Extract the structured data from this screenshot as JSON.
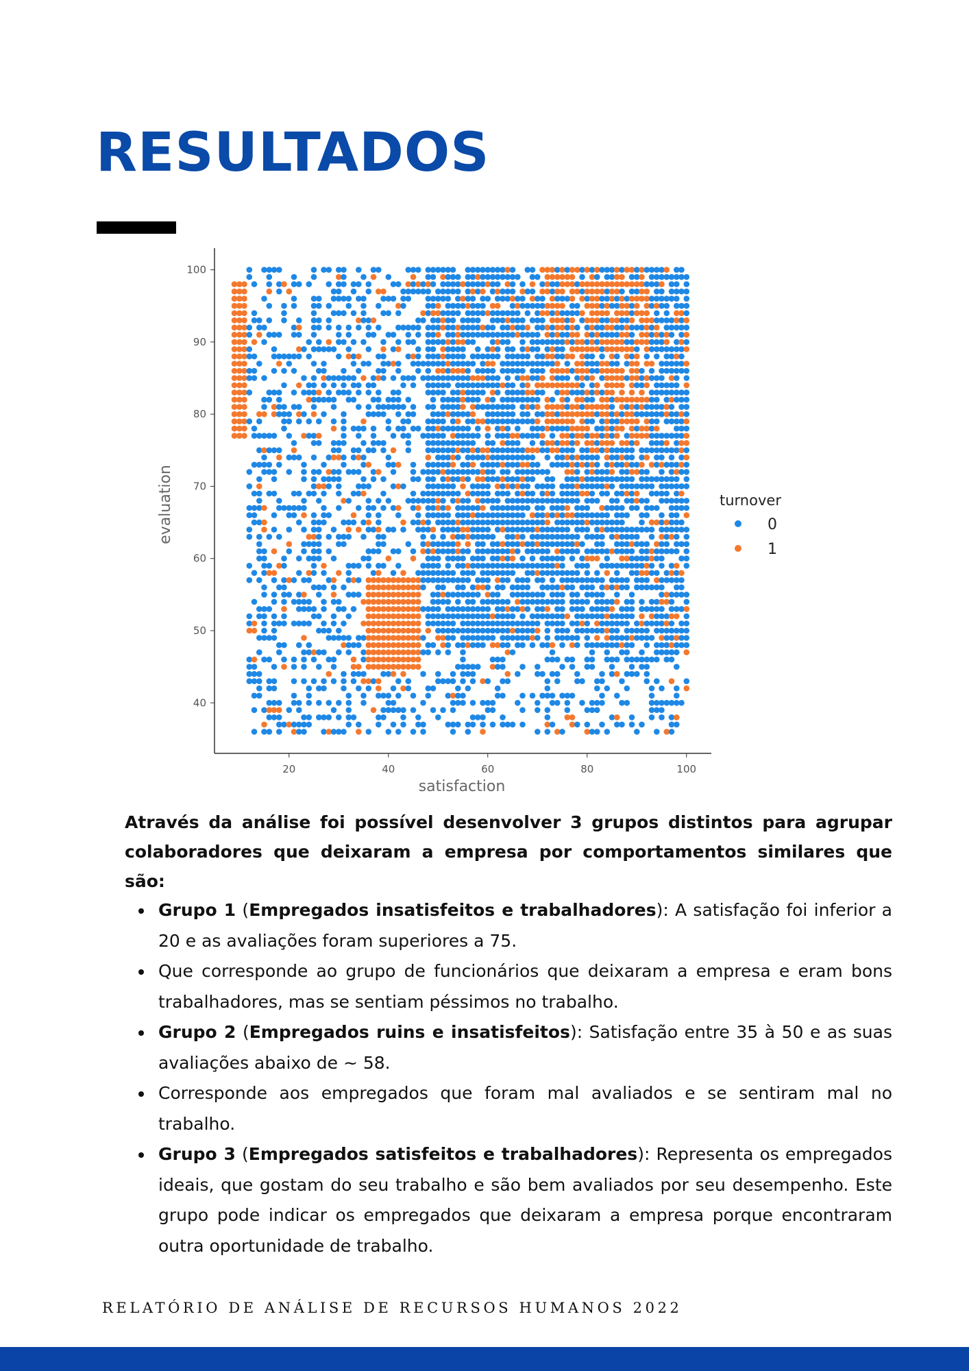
{
  "page": {
    "title": "RESULTADOS",
    "footer": "RELATÓRIO DE ANÁLISE DE RECURSOS HUMANOS 2022"
  },
  "colors": {
    "title_blue": "#0a4aa8",
    "footer_band": "#0a44a6",
    "turnover_0": "#1f88e5",
    "turnover_1": "#f4792e"
  },
  "chart_data": {
    "type": "scatter",
    "title": "",
    "xlabel": "satisfaction",
    "ylabel": "evaluation",
    "xlim": [
      5,
      105
    ],
    "ylim": [
      33,
      103
    ],
    "xticks": [
      20,
      40,
      60,
      80,
      100
    ],
    "yticks": [
      40,
      50,
      60,
      70,
      80,
      90,
      100
    ],
    "grid": false,
    "legend": {
      "title": "turnover",
      "position": "right",
      "entries": [
        "0",
        "1"
      ]
    },
    "grid_step": 1,
    "series": [
      {
        "name": "0",
        "color": "#1f88e5",
        "note_regions": [
          {
            "x": [
              12,
              100
            ],
            "y": [
              36,
              100
            ],
            "density": "sparse-left, dense for x>=48"
          }
        ]
      },
      {
        "name": "1",
        "color": "#f4792e",
        "clusters": [
          {
            "x": [
              9,
              11
            ],
            "y": [
              77,
              98
            ]
          },
          {
            "x": [
              36,
              46
            ],
            "y": [
              45,
              57
            ]
          },
          {
            "x": [
              72,
              92
            ],
            "y": [
              76,
              100
            ]
          }
        ]
      }
    ]
  },
  "text": {
    "intro": "Através da análise foi possível desenvolver 3 grupos distintos para agrupar colaboradores que deixaram a empresa por comportamentos similares que são:",
    "b1_head": "Grupo 1",
    "b1_paren_bold": "Empregados insatisfeitos e trabalhadores",
    "b1_rest": ": A satisfação foi inferior a 20 e as avaliações foram superiores a 75.",
    "b2": "Que corresponde ao grupo de funcionários que deixaram a empresa e eram bons trabalhadores, mas se sentiam péssimos no trabalho.",
    "b3_head": "Grupo 2",
    "b3_paren_bold": "Empregados ruins e insatisfeitos",
    "b3_rest": ": Satisfação entre 35 à 50 e as suas avaliações abaixo de ~ 58.",
    "b4": "Corresponde aos empregados que foram mal avaliados e se sentiram mal no trabalho.",
    "b5_head": "Grupo 3",
    "b5_paren_bold": "Empregados satisfeitos e trabalhadores",
    "b5_rest": ": Representa os empregados ideais, que gostam do seu trabalho e são bem avaliados por seu desempenho. Este grupo pode indicar os empregados que deixaram a empresa porque encontraram outra oportunidade de trabalho."
  }
}
